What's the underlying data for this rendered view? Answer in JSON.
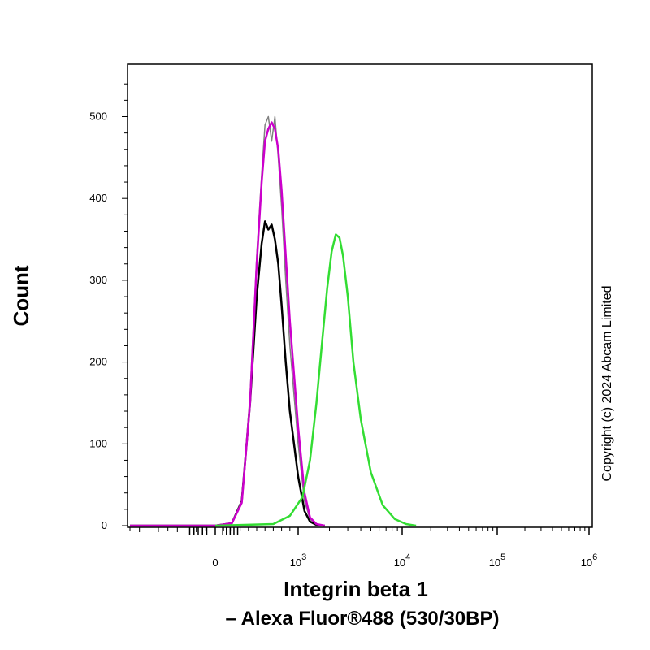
{
  "chart_data": {
    "type": "line",
    "title": "",
    "xlabel_line1": "Integrin beta 1",
    "xlabel_line2": "– Alexa Fluor®488 (530/30BP)",
    "ylabel": "Count",
    "x_scale": "biexponential (log) fluorescence intensity",
    "xlim": [
      -900,
      1000000
    ],
    "ylim": [
      0,
      560
    ],
    "grid": false,
    "legend": "none",
    "y_ticks": [
      {
        "value": 0,
        "label": "0"
      },
      {
        "value": 100,
        "label": "100"
      },
      {
        "value": 200,
        "label": "200"
      },
      {
        "value": 300,
        "label": "300"
      },
      {
        "value": 400,
        "label": "400"
      },
      {
        "value": 500,
        "label": "500"
      }
    ],
    "x_ticks": [
      {
        "value": 0,
        "base": "0",
        "exp": ""
      },
      {
        "value": 1000,
        "base": "10",
        "exp": "3"
      },
      {
        "value": 10000,
        "base": "10",
        "exp": "4"
      },
      {
        "value": 100000,
        "base": "10",
        "exp": "5"
      },
      {
        "value": 1000000,
        "base": "10",
        "exp": "6"
      }
    ],
    "series": [
      {
        "color": "#000000",
        "x": [
          -900,
          -400,
          0,
          200,
          320,
          420,
          500,
          560,
          600,
          640,
          680,
          720,
          760,
          800,
          850,
          900,
          1000,
          1150,
          1300,
          1500,
          1800
        ],
        "y": [
          0,
          0,
          0,
          3,
          30,
          150,
          280,
          345,
          372,
          362,
          368,
          350,
          320,
          270,
          200,
          140,
          60,
          18,
          5,
          1,
          0
        ]
      },
      {
        "color": "#808080",
        "x": [
          -900,
          0,
          200,
          320,
          420,
          500,
          560,
          600,
          640,
          680,
          720,
          760,
          800,
          850,
          900,
          1000,
          1150,
          1300,
          1500,
          1800
        ],
        "y": [
          0,
          0,
          3,
          30,
          160,
          330,
          430,
          490,
          500,
          470,
          500,
          450,
          390,
          300,
          220,
          100,
          30,
          8,
          2,
          0
        ]
      },
      {
        "color": "#cc00cc",
        "x": [
          -900,
          0,
          200,
          320,
          420,
          500,
          560,
          600,
          640,
          680,
          720,
          760,
          800,
          850,
          900,
          1000,
          1150,
          1300,
          1500,
          1800
        ],
        "y": [
          0,
          0,
          3,
          28,
          150,
          320,
          420,
          470,
          485,
          493,
          485,
          460,
          410,
          330,
          250,
          120,
          40,
          10,
          2,
          0
        ]
      },
      {
        "color": "#33dd33",
        "x": [
          0,
          700,
          900,
          1100,
          1300,
          1500,
          1700,
          1900,
          2100,
          2300,
          2500,
          2700,
          3000,
          3400,
          4000,
          5000,
          6500,
          8500,
          11000,
          14000
        ],
        "y": [
          0,
          2,
          12,
          35,
          80,
          150,
          225,
          290,
          335,
          356,
          352,
          330,
          280,
          200,
          130,
          65,
          25,
          8,
          2,
          0
        ]
      }
    ]
  },
  "copyright": "Copyright (c) 2024 Abcam Limited"
}
